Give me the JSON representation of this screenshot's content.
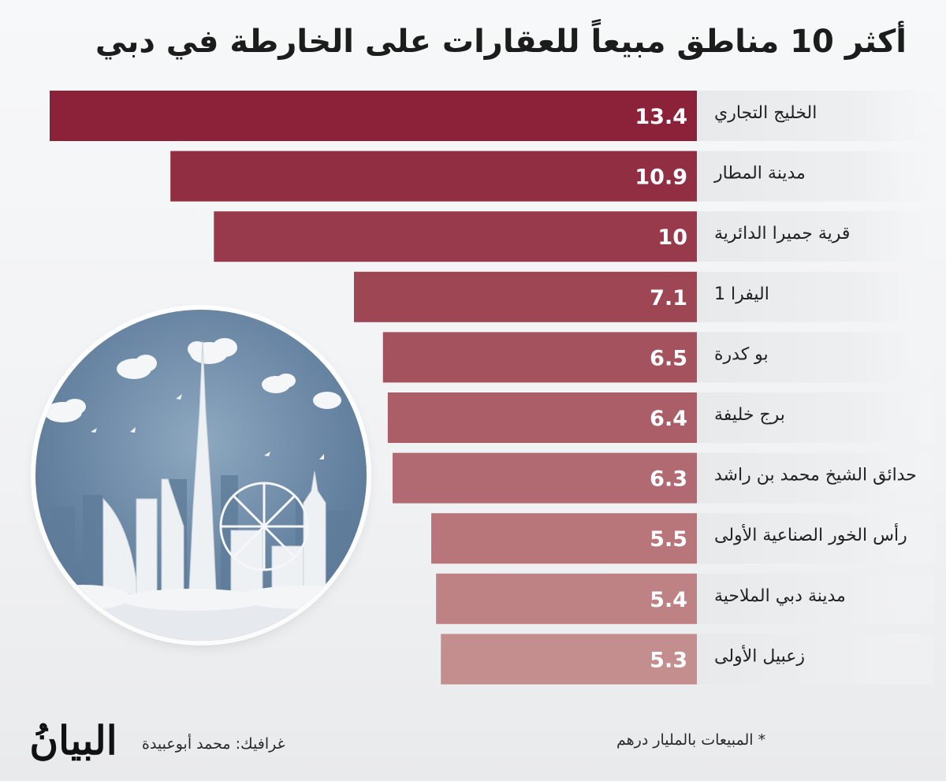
{
  "title": "أكثر 10 مناطق مبيعاً للعقارات على الخارطة في دبي",
  "footer": {
    "credit": "غرافيك: محمد أبوعبيدة",
    "note": "* المبيعات بالمليار درهم",
    "logo_text": "البيانُ"
  },
  "illustration": {
    "subject": "dubai-skyline-icon"
  },
  "colors": {
    "bar_darkest": "#8c2239",
    "bar_lightest": "#c48e8e",
    "label_band": "#e8e9eb",
    "value_text": "#ffffff",
    "label_text": "#222222"
  },
  "chart_data": {
    "type": "bar",
    "orientation": "horizontal",
    "title": "أكثر 10 مناطق مبيعاً للعقارات على الخارطة في دبي",
    "xlabel": "",
    "ylabel": "",
    "unit_note": "* المبيعات بالمليار درهم",
    "categories": [
      "الخليج التجاري",
      "مدينة المطار",
      "قرية جميرا الدائرية",
      "اليفرا 1",
      "بو كدرة",
      "برج خليفة",
      "حدائق الشيخ محمد بن راشد",
      "رأس الخور الصناعية الأولى",
      "مدينة دبي الملاحية",
      "زعبيل الأولى"
    ],
    "values": [
      13.4,
      10.9,
      10,
      7.1,
      6.5,
      6.4,
      6.3,
      5.5,
      5.4,
      5.3
    ],
    "value_labels": [
      "13.4",
      "10.9",
      "10",
      "7.1",
      "6.5",
      "6.4",
      "6.3",
      "5.5",
      "5.4",
      "5.3"
    ],
    "xlim": [
      0,
      13.4
    ],
    "grid": false,
    "legend": "none"
  }
}
